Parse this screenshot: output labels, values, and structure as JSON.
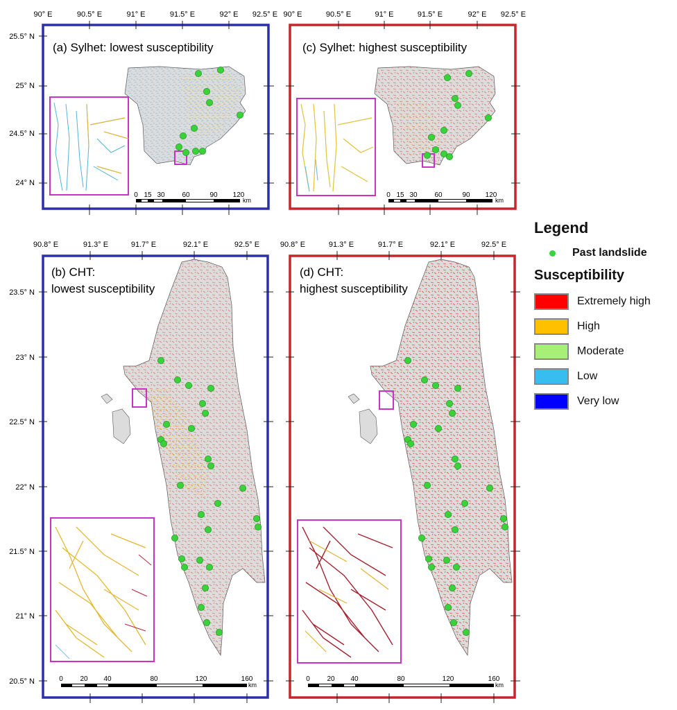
{
  "colors": {
    "blue_frame": "#2b2fa8",
    "red_frame": "#c4262a",
    "inset_frame": "#c832c8",
    "land": "#dcdcdc",
    "landslide": "#3ad13a"
  },
  "panels": {
    "a": {
      "title": "(a) Sylhet: lowest susceptibility",
      "lon_ticks": [
        "90° E",
        "90.5° E",
        "91° E",
        "91.5° E",
        "92° E",
        "92.5° E"
      ],
      "lat_ticks": [
        "25.5° N",
        "25° N",
        "24.5° N",
        "24° N"
      ],
      "scale_labels": [
        "0",
        "15",
        "30",
        "60",
        "90",
        "120"
      ],
      "scale_unit": "km"
    },
    "c": {
      "title": "(c) Sylhet: highest susceptibility",
      "lon_ticks": [
        "90° E",
        "90.5° E",
        "91° E",
        "91.5° E",
        "92° E",
        "92.5° E"
      ],
      "scale_labels": [
        "0",
        "15",
        "30",
        "60",
        "90",
        "120"
      ],
      "scale_unit": "km"
    },
    "b": {
      "title_line1": "(b) CHT:",
      "title_line2": "lowest susceptibility",
      "lon_ticks": [
        "90.8° E",
        "91.3° E",
        "91.7° E",
        "92.1° E",
        "92.5° E"
      ],
      "lat_ticks": [
        "23.5° N",
        "23° N",
        "22.5° N",
        "22° N",
        "21.5° N",
        "21° N",
        "20.5° N"
      ],
      "scale_labels": [
        "0",
        "20",
        "40",
        "80",
        "120",
        "160"
      ],
      "scale_unit": "km"
    },
    "d": {
      "title_line1": "(d) CHT:",
      "title_line2": "highest susceptibility",
      "lon_ticks": [
        "90.8° E",
        "91.3° E",
        "91.7° E",
        "92.1° E",
        "92.5° E"
      ],
      "scale_labels": [
        "0",
        "20",
        "40",
        "80",
        "120",
        "160"
      ],
      "scale_unit": "km"
    }
  },
  "legend": {
    "title": "Legend",
    "point_label": "Past landslide",
    "susceptibility_title": "Susceptibility",
    "classes": [
      {
        "label": "Extremely high",
        "color": "#ff0000"
      },
      {
        "label": "High",
        "color": "#ffc000"
      },
      {
        "label": "Moderate",
        "color": "#a6f07a"
      },
      {
        "label": "Low",
        "color": "#38bdf0"
      },
      {
        "label": "Very low",
        "color": "#0000ff"
      }
    ]
  }
}
